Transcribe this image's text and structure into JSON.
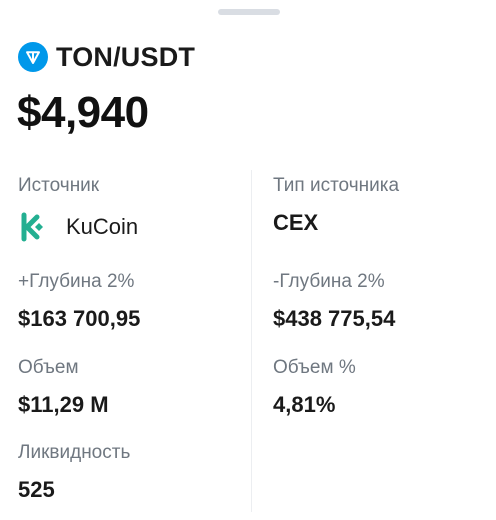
{
  "header": {
    "pair": "TON/USDT",
    "price": "$4,940",
    "pair_icon": "ton-icon",
    "accent_color": "#0098ea"
  },
  "details": {
    "source": {
      "label": "Источник",
      "exchange": "KuCoin",
      "icon": "kucoin-icon",
      "icon_color": "#23af91"
    },
    "source_type": {
      "label": "Тип источника",
      "value": "CEX"
    },
    "depth_plus": {
      "label": "+Глубина 2%",
      "value": "$163 700,95"
    },
    "depth_minus": {
      "label": "-Глубина 2%",
      "value": "$438 775,54"
    },
    "volume": {
      "label": "Объем",
      "value": "$11,29 M"
    },
    "volume_pct": {
      "label": "Объем %",
      "value": "4,81%"
    },
    "liquidity": {
      "label": "Ликвидность",
      "value": "525"
    }
  }
}
